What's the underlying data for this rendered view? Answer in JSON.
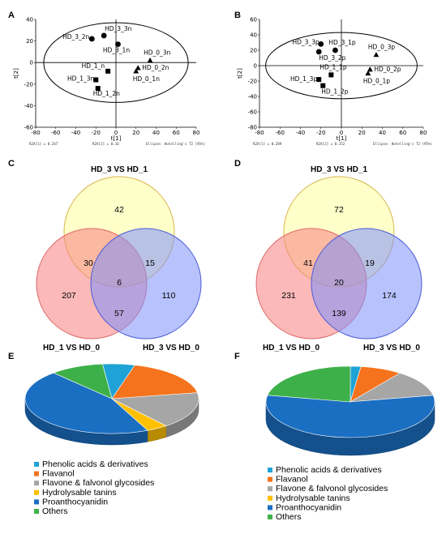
{
  "chart_data": [
    {
      "type": "scatter",
      "panel": "A",
      "xlabel": "t[1]",
      "ylabel": "t[2]",
      "xlim": [
        -80,
        80
      ],
      "ylim": [
        -60,
        40
      ],
      "xticks": [
        "-80",
        "-60",
        "-40",
        "-20",
        "0",
        "20",
        "40",
        "60",
        "80"
      ],
      "yticks": [
        "40",
        "20",
        "0",
        "-20",
        "-40",
        "-60"
      ],
      "footer": [
        "R2X[1] = 0.247",
        "R2X[2] = 0.16",
        "Ellipse: Hotelling's T2 (95%)"
      ],
      "points": [
        {
          "label": "HD_3_3n",
          "x": -12,
          "y": 25,
          "marker": "circle"
        },
        {
          "label": "HD_3_2n",
          "x": -24,
          "y": 22,
          "marker": "circle"
        },
        {
          "label": "HD_3_1n",
          "x": 2,
          "y": 17,
          "marker": "circle"
        },
        {
          "label": "HD_1_n",
          "x": -8,
          "y": -8,
          "marker": "square"
        },
        {
          "label": "HD_1_3n",
          "x": -20,
          "y": -16,
          "marker": "square"
        },
        {
          "label": "HD_1_2n",
          "x": -18,
          "y": -24,
          "marker": "square"
        },
        {
          "label": "HD_0_3n",
          "x": 34,
          "y": 2,
          "marker": "triangle"
        },
        {
          "label": "HD_0_2n",
          "x": 22,
          "y": -5,
          "marker": "triangle"
        },
        {
          "label": "HD_0_1n",
          "x": 20,
          "y": -8,
          "marker": "triangle"
        }
      ]
    },
    {
      "type": "scatter",
      "panel": "B",
      "xlabel": "t[1]",
      "ylabel": "t[2]",
      "xlim": [
        -80,
        80
      ],
      "ylim": [
        -80,
        60
      ],
      "xticks": [
        "-80",
        "-60",
        "-40",
        "-20",
        "0",
        "20",
        "40",
        "60",
        "80"
      ],
      "yticks": [
        "60",
        "40",
        "20",
        "0",
        "-20",
        "-40",
        "-60",
        "-80"
      ],
      "footer": [
        "R2X[1] = 0.209",
        "R2X[2] = 0.152",
        "Ellipse: Hotelling's T2 (95%)"
      ],
      "points": [
        {
          "label": "HD_3_3p",
          "x": -20,
          "y": 28,
          "marker": "circle"
        },
        {
          "label": "HD_3_1p",
          "x": -6,
          "y": 20,
          "marker": "circle"
        },
        {
          "label": "HD_3_2p",
          "x": -22,
          "y": 18,
          "marker": "circle"
        },
        {
          "label": "HD_1_1p",
          "x": -10,
          "y": -12,
          "marker": "square"
        },
        {
          "label": "HD_1_3p",
          "x": -22,
          "y": -18,
          "marker": "square"
        },
        {
          "label": "HD_1_2p",
          "x": -18,
          "y": -26,
          "marker": "square"
        },
        {
          "label": "HD_0_3p",
          "x": 34,
          "y": 14,
          "marker": "triangle"
        },
        {
          "label": "HD_0_2p",
          "x": 28,
          "y": -5,
          "marker": "triangle"
        },
        {
          "label": "HD_0_1p",
          "x": 26,
          "y": -10,
          "marker": "triangle"
        }
      ]
    },
    {
      "type": "venn",
      "panel": "C",
      "sets": [
        "HD_3 VS HD_1",
        "HD_1 VS HD_0",
        "HD_3 VS HD_0"
      ],
      "regions": {
        "top_only": "42",
        "left_only": "207",
        "right_only": "110",
        "top_left": "30",
        "top_right": "15",
        "left_right": "57",
        "all": "6"
      }
    },
    {
      "type": "venn",
      "panel": "D",
      "sets": [
        "HD_3 VS HD_1",
        "HD_1 VS HD_0",
        "HD_3 VS HD_0"
      ],
      "regions": {
        "top_only": "72",
        "left_only": "231",
        "right_only": "174",
        "top_left": "41",
        "top_right": "19",
        "left_right": "139",
        "all": "20"
      }
    },
    {
      "type": "pie",
      "panel": "E",
      "labels": [
        "Phenolic acids & derivatives",
        "Flavanol",
        "Flavone & falvonol glycosides",
        "Hydrolysable tanins",
        "Proanthocyanidin",
        "Others"
      ],
      "values": [
        6,
        18,
        17,
        4,
        45,
        10
      ]
    },
    {
      "type": "pie",
      "panel": "F",
      "labels": [
        "Phenolic acids & derivatives",
        "Flavanol",
        "Flavone & falvonol glycosides",
        "Hydrolysable tanins",
        "Proanthocyanidin",
        "Others"
      ],
      "values": [
        2,
        8,
        12,
        0,
        56,
        22
      ]
    }
  ],
  "colors": {
    "pie": [
      "#1fa3d6",
      "#f5731c",
      "#a6a6a6",
      "#ffc000",
      "#1b6fc2",
      "#3eb049"
    ],
    "venn_top": "#ffff9f",
    "venn_left": "#f77f80",
    "venn_right": "#7d8ff9"
  }
}
